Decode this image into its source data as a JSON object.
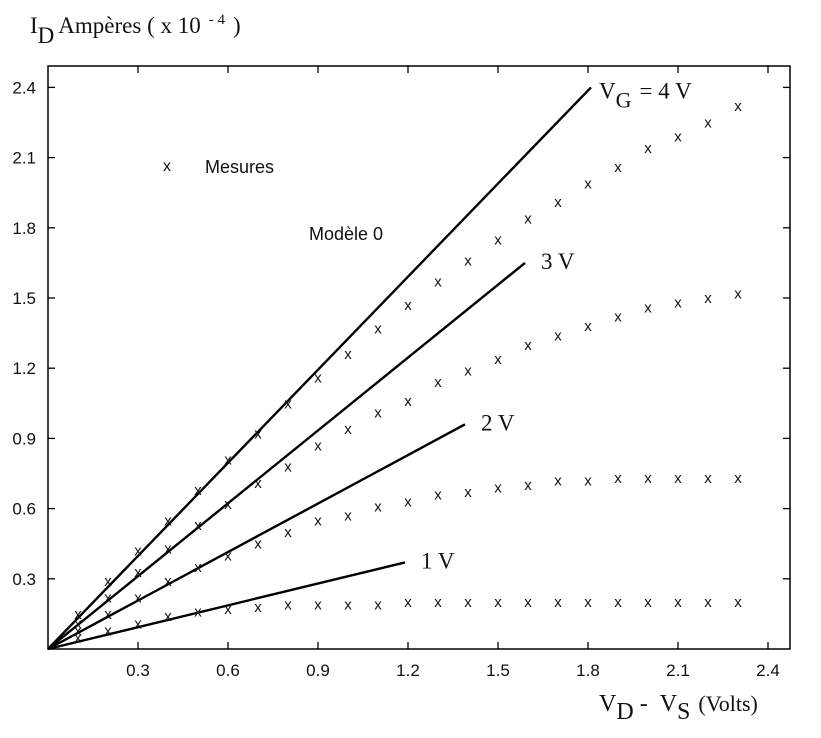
{
  "chart_data": {
    "type": "scatter",
    "y_title": {
      "symbol": "I",
      "sub": "D",
      "unit": "Ampères ( x 10",
      "exp": "- 4",
      "close": ")"
    },
    "x_title": {
      "v1": "V",
      "s1": "D",
      "dash": "-",
      "v2": "V",
      "s2": "S",
      "unit": "(Volts)"
    },
    "xlim": [
      0,
      2.45
    ],
    "ylim": [
      0,
      2.45
    ],
    "xticks": [
      0.3,
      0.6,
      0.9,
      1.2,
      1.5,
      1.8,
      2.1,
      2.4
    ],
    "yticks": [
      0.3,
      0.6,
      0.9,
      1.2,
      1.5,
      1.8,
      2.1,
      2.4
    ],
    "tick_labels": [
      "0.3",
      "0.6",
      "0.9",
      "1.2",
      "1.5",
      "1.8",
      "2.1",
      "2.4"
    ],
    "legend": {
      "marker": "x",
      "measures": "Mesures",
      "model": "Modèle 0"
    },
    "grid": false,
    "model_lines": [
      {
        "label": "V",
        "sub": "G",
        "rest": "= 4 V",
        "x_end": 1.81,
        "y_end": 2.4
      },
      {
        "label": "3 V",
        "x_end": 1.59,
        "y_end": 1.65
      },
      {
        "label": "2 V",
        "x_end": 1.39,
        "y_end": 0.96
      },
      {
        "label": "1 V",
        "x_end": 1.19,
        "y_end": 0.37
      }
    ],
    "series": [
      {
        "x": [
          0.1,
          0.2,
          0.3,
          0.4,
          0.5,
          0.6,
          0.7,
          0.8,
          0.9,
          1.0,
          1.1,
          1.2,
          1.3,
          1.4,
          1.5,
          1.6,
          1.7,
          1.8,
          1.9,
          2.0,
          2.1,
          2.2,
          2.3
        ],
        "y": [
          0.15,
          0.29,
          0.42,
          0.55,
          0.68,
          0.81,
          0.92,
          1.05,
          1.16,
          1.26,
          1.37,
          1.47,
          1.57,
          1.66,
          1.75,
          1.84,
          1.91,
          1.99,
          2.06,
          2.14,
          2.19,
          2.25,
          2.32
        ]
      },
      {
        "x": [
          0.1,
          0.2,
          0.3,
          0.4,
          0.5,
          0.6,
          0.7,
          0.8,
          0.9,
          1.0,
          1.1,
          1.2,
          1.3,
          1.4,
          1.5,
          1.6,
          1.7,
          1.8,
          1.9,
          2.0,
          2.1,
          2.2,
          2.3
        ],
        "y": [
          0.11,
          0.22,
          0.33,
          0.43,
          0.53,
          0.62,
          0.71,
          0.78,
          0.87,
          0.94,
          1.01,
          1.06,
          1.14,
          1.19,
          1.24,
          1.3,
          1.34,
          1.38,
          1.42,
          1.46,
          1.48,
          1.5,
          1.52
        ]
      },
      {
        "x": [
          0.1,
          0.2,
          0.3,
          0.4,
          0.5,
          0.6,
          0.7,
          0.8,
          0.9,
          1.0,
          1.1,
          1.2,
          1.3,
          1.4,
          1.5,
          1.6,
          1.7,
          1.8,
          1.9,
          2.0,
          2.1,
          2.2,
          2.3
        ],
        "y": [
          0.08,
          0.15,
          0.22,
          0.29,
          0.35,
          0.4,
          0.45,
          0.5,
          0.55,
          0.57,
          0.61,
          0.63,
          0.66,
          0.67,
          0.69,
          0.7,
          0.72,
          0.72,
          0.73,
          0.73,
          0.73,
          0.73,
          0.73
        ]
      },
      {
        "x": [
          0.1,
          0.2,
          0.3,
          0.4,
          0.5,
          0.6,
          0.7,
          0.8,
          0.9,
          1.0,
          1.1,
          1.2,
          1.3,
          1.4,
          1.5,
          1.6,
          1.7,
          1.8,
          1.9,
          2.0,
          2.1,
          2.2,
          2.3
        ],
        "y": [
          0.05,
          0.08,
          0.11,
          0.14,
          0.16,
          0.17,
          0.18,
          0.19,
          0.19,
          0.19,
          0.19,
          0.2,
          0.2,
          0.2,
          0.2,
          0.2,
          0.2,
          0.2,
          0.2,
          0.2,
          0.2,
          0.2,
          0.2
        ]
      }
    ]
  }
}
